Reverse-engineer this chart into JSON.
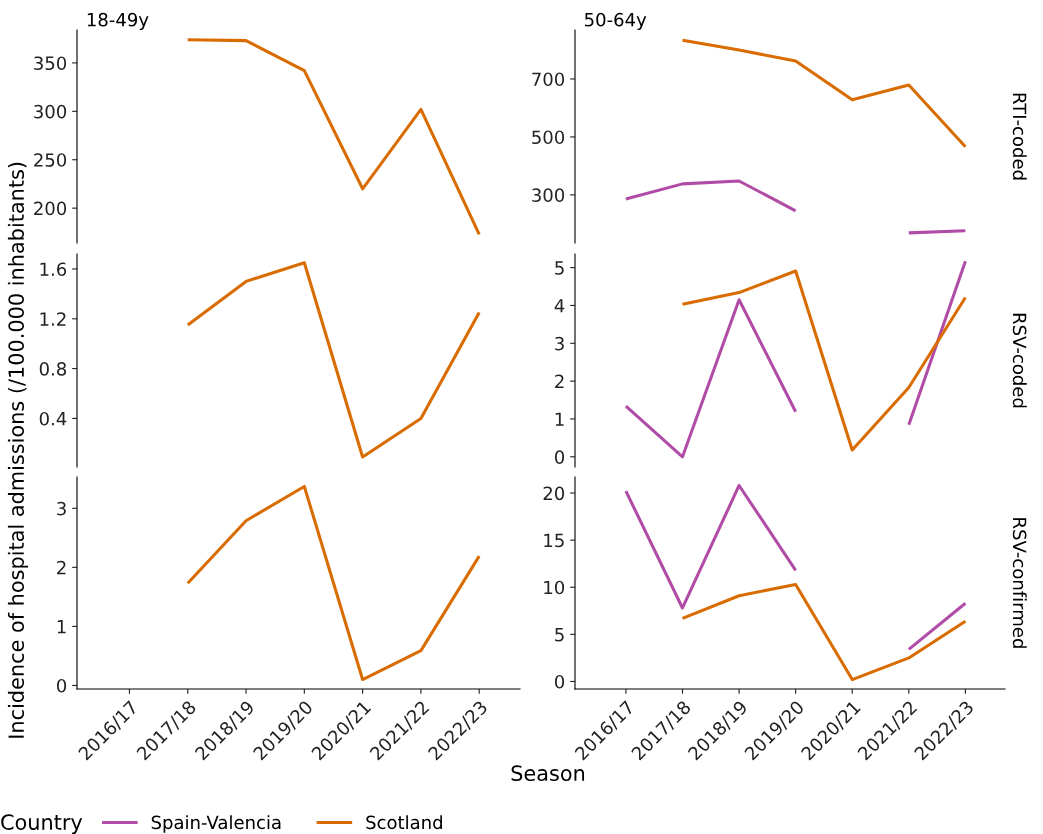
{
  "chart_data": [
    {
      "type": "line",
      "title": "18-49y",
      "xlabel": "Season",
      "ylabel": "Incidence of hospital admissions (/100.000 inhabitants)",
      "legend_title": "Country",
      "legend": "bottom",
      "grid": false,
      "tick_labels": "y",
      "categories": [
        "2016/17",
        "2017/18",
        "2018/19",
        "2019/20",
        "2020/21",
        "2021/22",
        "2022/23"
      ],
      "ylim": [
        164,
        384
      ],
      "yticks": [
        200,
        250,
        300,
        350
      ],
      "series": [
        {
          "name": "Spain-Valencia",
          "color": "#b04ca6",
          "values": [
            null,
            null,
            null,
            null,
            null,
            null,
            null
          ]
        },
        {
          "name": "Scotland",
          "color": "#d96c00",
          "values": [
            null,
            374,
            373,
            342,
            220,
            302,
            173
          ]
        }
      ]
    },
    {
      "type": "line",
      "title": "50-64y",
      "annotations": [
        "RTI-coded"
      ],
      "tick_labels": "y",
      "grid": false,
      "categories": [
        "2016/17",
        "2017/18",
        "2018/19",
        "2019/20",
        "2020/21",
        "2021/22",
        "2022/23"
      ],
      "ylim": [
        134,
        869
      ],
      "yticks": [
        300,
        500,
        700
      ],
      "series": [
        {
          "color": "#b04ca6",
          "values": [
            286,
            338,
            348,
            245,
            null,
            169,
            176
          ]
        },
        {
          "color": "#d96c00",
          "values": [
            null,
            834,
            800,
            762,
            628,
            679,
            466
          ]
        }
      ]
    },
    {
      "type": "line",
      "tick_labels": "y",
      "grid": false,
      "categories": [
        "2016/17",
        "2017/18",
        "2018/19",
        "2019/20",
        "2020/21",
        "2021/22",
        "2022/23"
      ],
      "ylim": [
        0.01,
        1.72
      ],
      "yticks": [
        0.4,
        0.8,
        1.2,
        1.6
      ],
      "series": [
        {
          "color": "#d96c00",
          "values": [
            null,
            1.15,
            1.5,
            1.65,
            0.09,
            0.4,
            1.25
          ]
        }
      ]
    },
    {
      "type": "line",
      "annotations": [
        "RSV-coded"
      ],
      "tick_labels": "y",
      "grid": false,
      "categories": [
        "2016/17",
        "2017/18",
        "2018/19",
        "2019/20",
        "2020/21",
        "2021/22",
        "2022/23"
      ],
      "ylim": [
        -0.27,
        5.36
      ],
      "yticks": [
        0,
        1,
        2,
        3,
        4,
        5
      ],
      "series": [
        {
          "color": "#b04ca6",
          "values": [
            1.34,
            0,
            4.15,
            1.19,
            null,
            0.85,
            5.17
          ]
        },
        {
          "color": "#d96c00",
          "values": [
            null,
            4.03,
            4.34,
            4.91,
            0.18,
            1.83,
            4.21
          ]
        }
      ]
    },
    {
      "type": "line",
      "grid": false,
      "categories": [
        "2016/17",
        "2017/18",
        "2018/19",
        "2019/20",
        "2020/21",
        "2021/22",
        "2022/23"
      ],
      "ylim": [
        -0.06,
        3.53
      ],
      "yticks": [
        0,
        1,
        2,
        3
      ],
      "series": [
        {
          "color": "#d96c00",
          "values": [
            null,
            1.73,
            2.79,
            3.37,
            0.1,
            0.59,
            2.19
          ]
        }
      ]
    },
    {
      "type": "line",
      "annotations": [
        "RSV-confirmed"
      ],
      "grid": false,
      "categories": [
        "2016/17",
        "2017/18",
        "2018/19",
        "2019/20",
        "2020/21",
        "2021/22",
        "2022/23"
      ],
      "ylim": [
        -0.8,
        21.7
      ],
      "yticks": [
        0,
        5,
        10,
        15,
        20
      ],
      "series": [
        {
          "color": "#b04ca6",
          "values": [
            20.2,
            7.8,
            20.8,
            11.8,
            null,
            3.4,
            8.3
          ]
        },
        {
          "color": "#d96c00",
          "values": [
            null,
            6.7,
            9.1,
            10.3,
            0.2,
            2.5,
            6.4
          ]
        }
      ]
    }
  ]
}
